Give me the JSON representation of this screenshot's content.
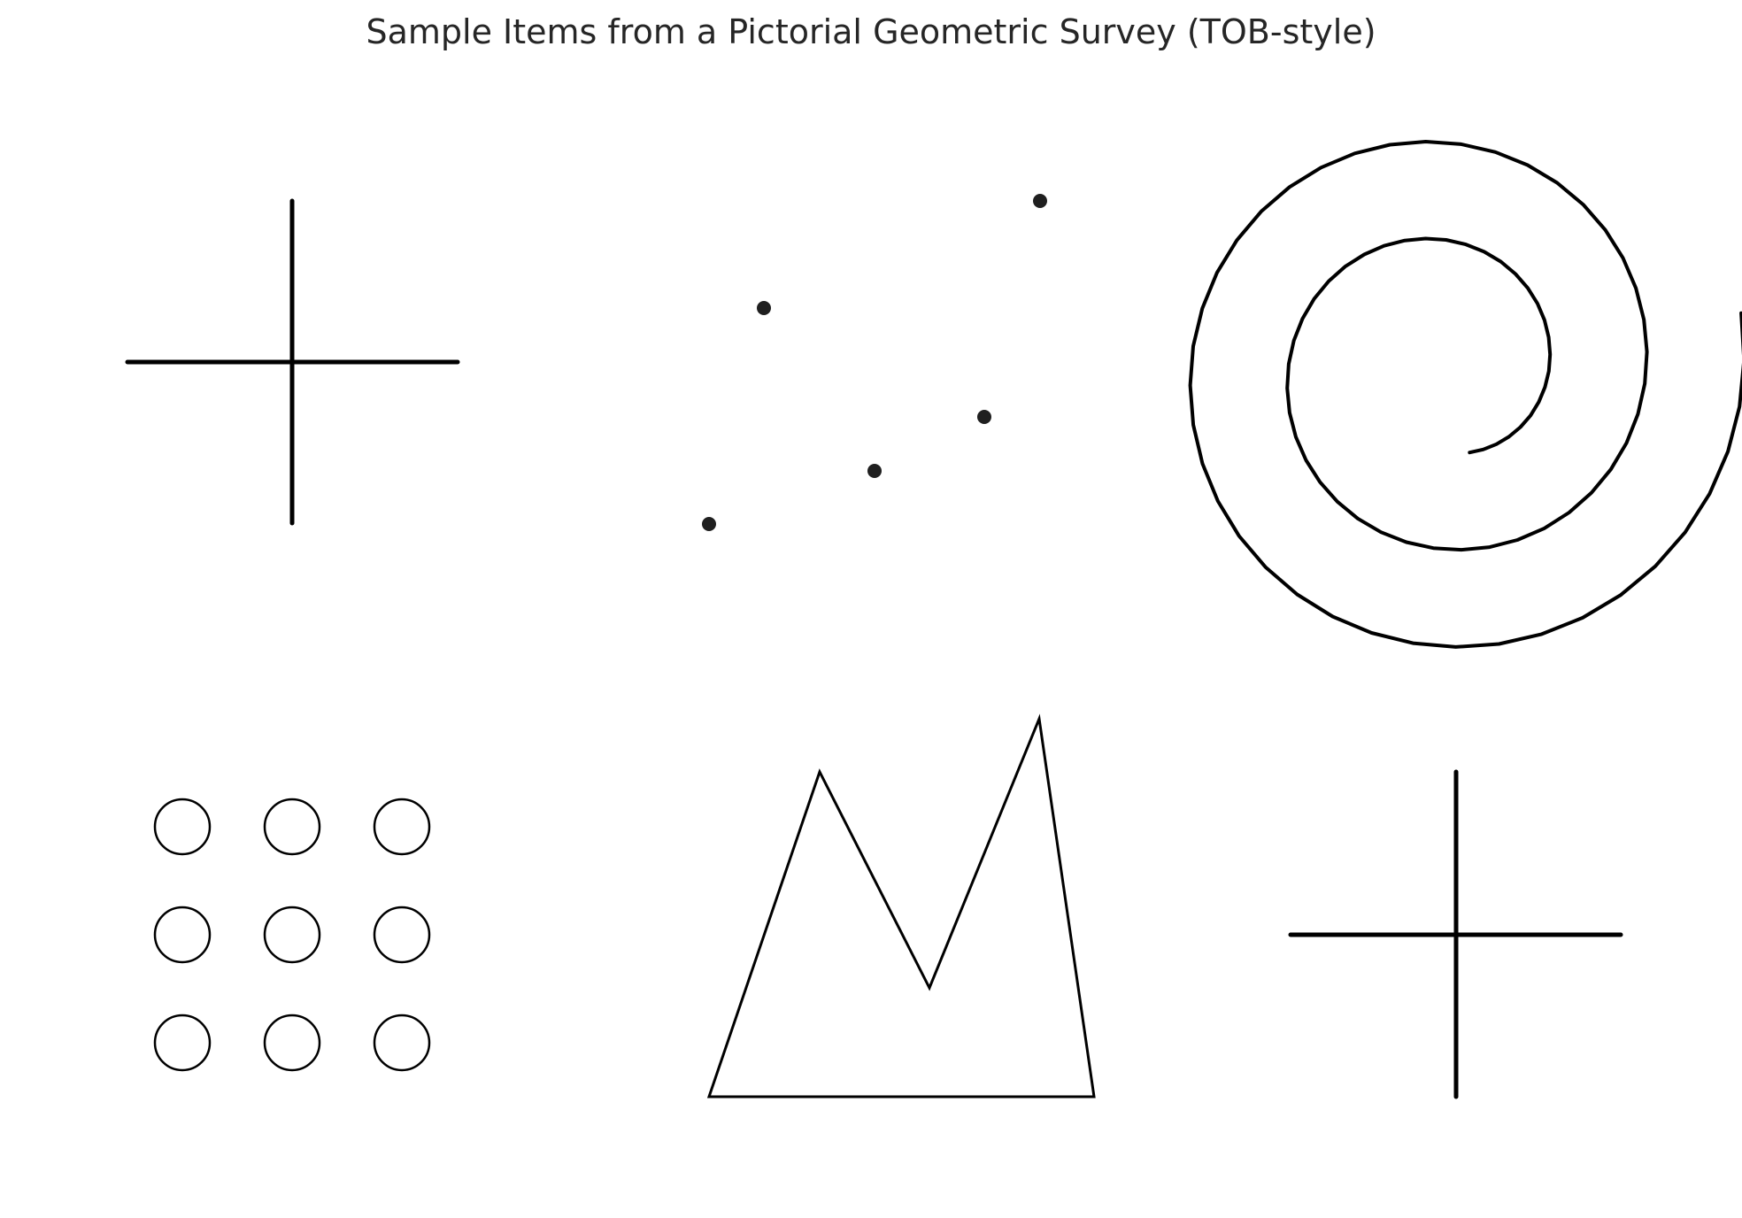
{
  "title": "Sample Items from a Pictorial Geometric Survey (TOB-style)",
  "colors": {
    "background": "#ffffff",
    "stroke": "#000000",
    "dot_fill": "#1f1f1f",
    "title_text": "#262626"
  },
  "items": [
    {
      "name": "cross-figure",
      "shape": "cross"
    },
    {
      "name": "scattered-dots-figure",
      "shape": "dots",
      "count": 5
    },
    {
      "name": "spiral-figure",
      "shape": "spiral"
    },
    {
      "name": "circle-grid-figure",
      "shape": "circle-grid",
      "rows": 3,
      "columns": 3
    },
    {
      "name": "m-shape-figure",
      "shape": "polygon"
    },
    {
      "name": "cross-figure-2",
      "shape": "cross"
    }
  ]
}
